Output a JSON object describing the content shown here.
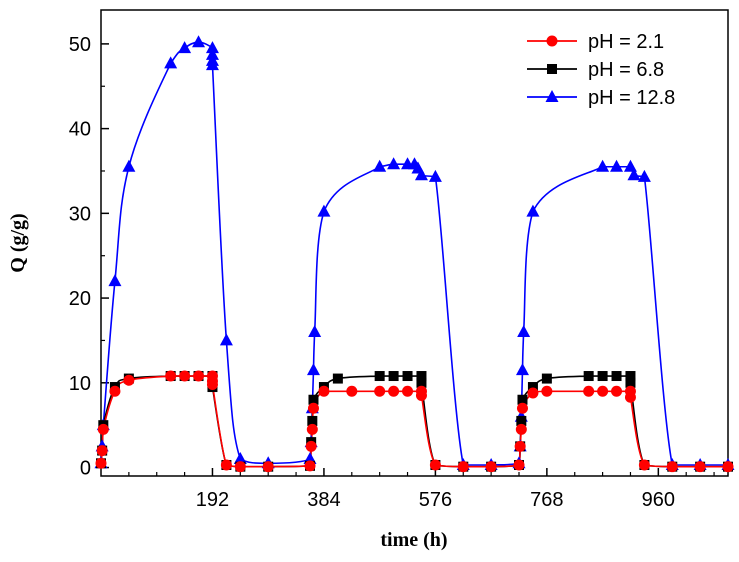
{
  "chart_data": {
    "type": "line",
    "title": "",
    "xlabel": "time (h)",
    "ylabel": "Q (g/g)",
    "xlim": [
      0,
      1080
    ],
    "ylim": [
      -1,
      54
    ],
    "x_ticks": [
      192,
      384,
      576,
      768,
      960
    ],
    "x_tick_labels": [
      "192",
      "384",
      "576",
      "768",
      "960"
    ],
    "y_ticks": [
      0,
      10,
      20,
      30,
      40,
      50
    ],
    "y_tick_labels": [
      "0",
      "10",
      "20",
      "30",
      "40",
      "50"
    ],
    "grid": false,
    "legend_position": "top-right",
    "series": [
      {
        "name": "pH = 12.8",
        "color": "#0000ff",
        "marker": "triangle",
        "points": [
          [
            0,
            0.5
          ],
          [
            2,
            2.5
          ],
          [
            4,
            5
          ],
          [
            24,
            22
          ],
          [
            48,
            35.5
          ],
          [
            120,
            47.7
          ],
          [
            144,
            49.5
          ],
          [
            168,
            50.2
          ],
          [
            192,
            49.5
          ],
          [
            192,
            48.7
          ],
          [
            192,
            48
          ],
          [
            192,
            47.5
          ],
          [
            216,
            15
          ],
          [
            240,
            1
          ],
          [
            288,
            0.5
          ],
          [
            360,
            1
          ],
          [
            362,
            3
          ],
          [
            364,
            7
          ],
          [
            366,
            11.5
          ],
          [
            368,
            16
          ],
          [
            384,
            30.2
          ],
          [
            480,
            35.5
          ],
          [
            504,
            35.8
          ],
          [
            528,
            35.8
          ],
          [
            540,
            35.8
          ],
          [
            546,
            35.3
          ],
          [
            552,
            34.5
          ],
          [
            576,
            34.3
          ],
          [
            624,
            0.3
          ],
          [
            672,
            0.3
          ],
          [
            720,
            0.5
          ],
          [
            722,
            2.5
          ],
          [
            724,
            6
          ],
          [
            726,
            11.5
          ],
          [
            728,
            16
          ],
          [
            744,
            30.2
          ],
          [
            864,
            35.5
          ],
          [
            888,
            35.5
          ],
          [
            912,
            35.5
          ],
          [
            918,
            34.5
          ],
          [
            936,
            34.3
          ],
          [
            984,
            0.3
          ],
          [
            1032,
            0.3
          ],
          [
            1080,
            0.3
          ]
        ]
      },
      {
        "name": "pH = 6.8",
        "color": "#000000",
        "marker": "square",
        "points": [
          [
            0,
            0.5
          ],
          [
            2,
            2
          ],
          [
            4,
            5
          ],
          [
            24,
            9.5
          ],
          [
            48,
            10.5
          ],
          [
            120,
            10.8
          ],
          [
            144,
            10.8
          ],
          [
            168,
            10.8
          ],
          [
            192,
            10.8
          ],
          [
            192,
            10
          ],
          [
            192,
            9.5
          ],
          [
            216,
            0.3
          ],
          [
            240,
            0.1
          ],
          [
            288,
            0.1
          ],
          [
            360,
            0.2
          ],
          [
            362,
            3
          ],
          [
            364,
            5.5
          ],
          [
            366,
            8
          ],
          [
            384,
            9.5
          ],
          [
            408,
            10.5
          ],
          [
            480,
            10.8
          ],
          [
            504,
            10.8
          ],
          [
            528,
            10.8
          ],
          [
            552,
            10.8
          ],
          [
            552,
            10
          ],
          [
            576,
            0.3
          ],
          [
            624,
            0.1
          ],
          [
            672,
            0.1
          ],
          [
            720,
            0.3
          ],
          [
            722,
            2.5
          ],
          [
            724,
            5.5
          ],
          [
            726,
            8
          ],
          [
            744,
            9.5
          ],
          [
            768,
            10.5
          ],
          [
            840,
            10.8
          ],
          [
            864,
            10.8
          ],
          [
            888,
            10.8
          ],
          [
            912,
            10.8
          ],
          [
            912,
            10
          ],
          [
            936,
            0.3
          ],
          [
            984,
            0.1
          ],
          [
            1032,
            0.1
          ],
          [
            1080,
            0.1
          ]
        ]
      },
      {
        "name": "pH = 2.1",
        "color": "#ff0000",
        "marker": "circle",
        "points": [
          [
            0,
            0.5
          ],
          [
            2,
            2
          ],
          [
            4,
            4.5
          ],
          [
            24,
            9
          ],
          [
            48,
            10.3
          ],
          [
            120,
            10.8
          ],
          [
            144,
            10.8
          ],
          [
            168,
            10.8
          ],
          [
            192,
            10.8
          ],
          [
            192,
            10.2
          ],
          [
            192,
            9.8
          ],
          [
            216,
            0.3
          ],
          [
            240,
            0.1
          ],
          [
            288,
            0.1
          ],
          [
            360,
            0.2
          ],
          [
            362,
            2.5
          ],
          [
            364,
            4.5
          ],
          [
            366,
            7
          ],
          [
            384,
            9
          ],
          [
            432,
            9
          ],
          [
            480,
            9
          ],
          [
            504,
            9
          ],
          [
            528,
            9
          ],
          [
            552,
            9
          ],
          [
            552,
            8.5
          ],
          [
            576,
            0.3
          ],
          [
            624,
            0.1
          ],
          [
            672,
            0.1
          ],
          [
            720,
            0.3
          ],
          [
            722,
            2.5
          ],
          [
            724,
            4.5
          ],
          [
            726,
            7
          ],
          [
            744,
            8.8
          ],
          [
            768,
            9
          ],
          [
            840,
            9
          ],
          [
            864,
            9
          ],
          [
            888,
            9
          ],
          [
            912,
            9
          ],
          [
            912,
            8.3
          ],
          [
            936,
            0.3
          ],
          [
            984,
            0.1
          ],
          [
            1032,
            0.1
          ],
          [
            1080,
            0.1
          ]
        ]
      }
    ],
    "legend_order": [
      "pH = 2.1",
      "pH = 6.8",
      "pH = 12.8"
    ]
  }
}
